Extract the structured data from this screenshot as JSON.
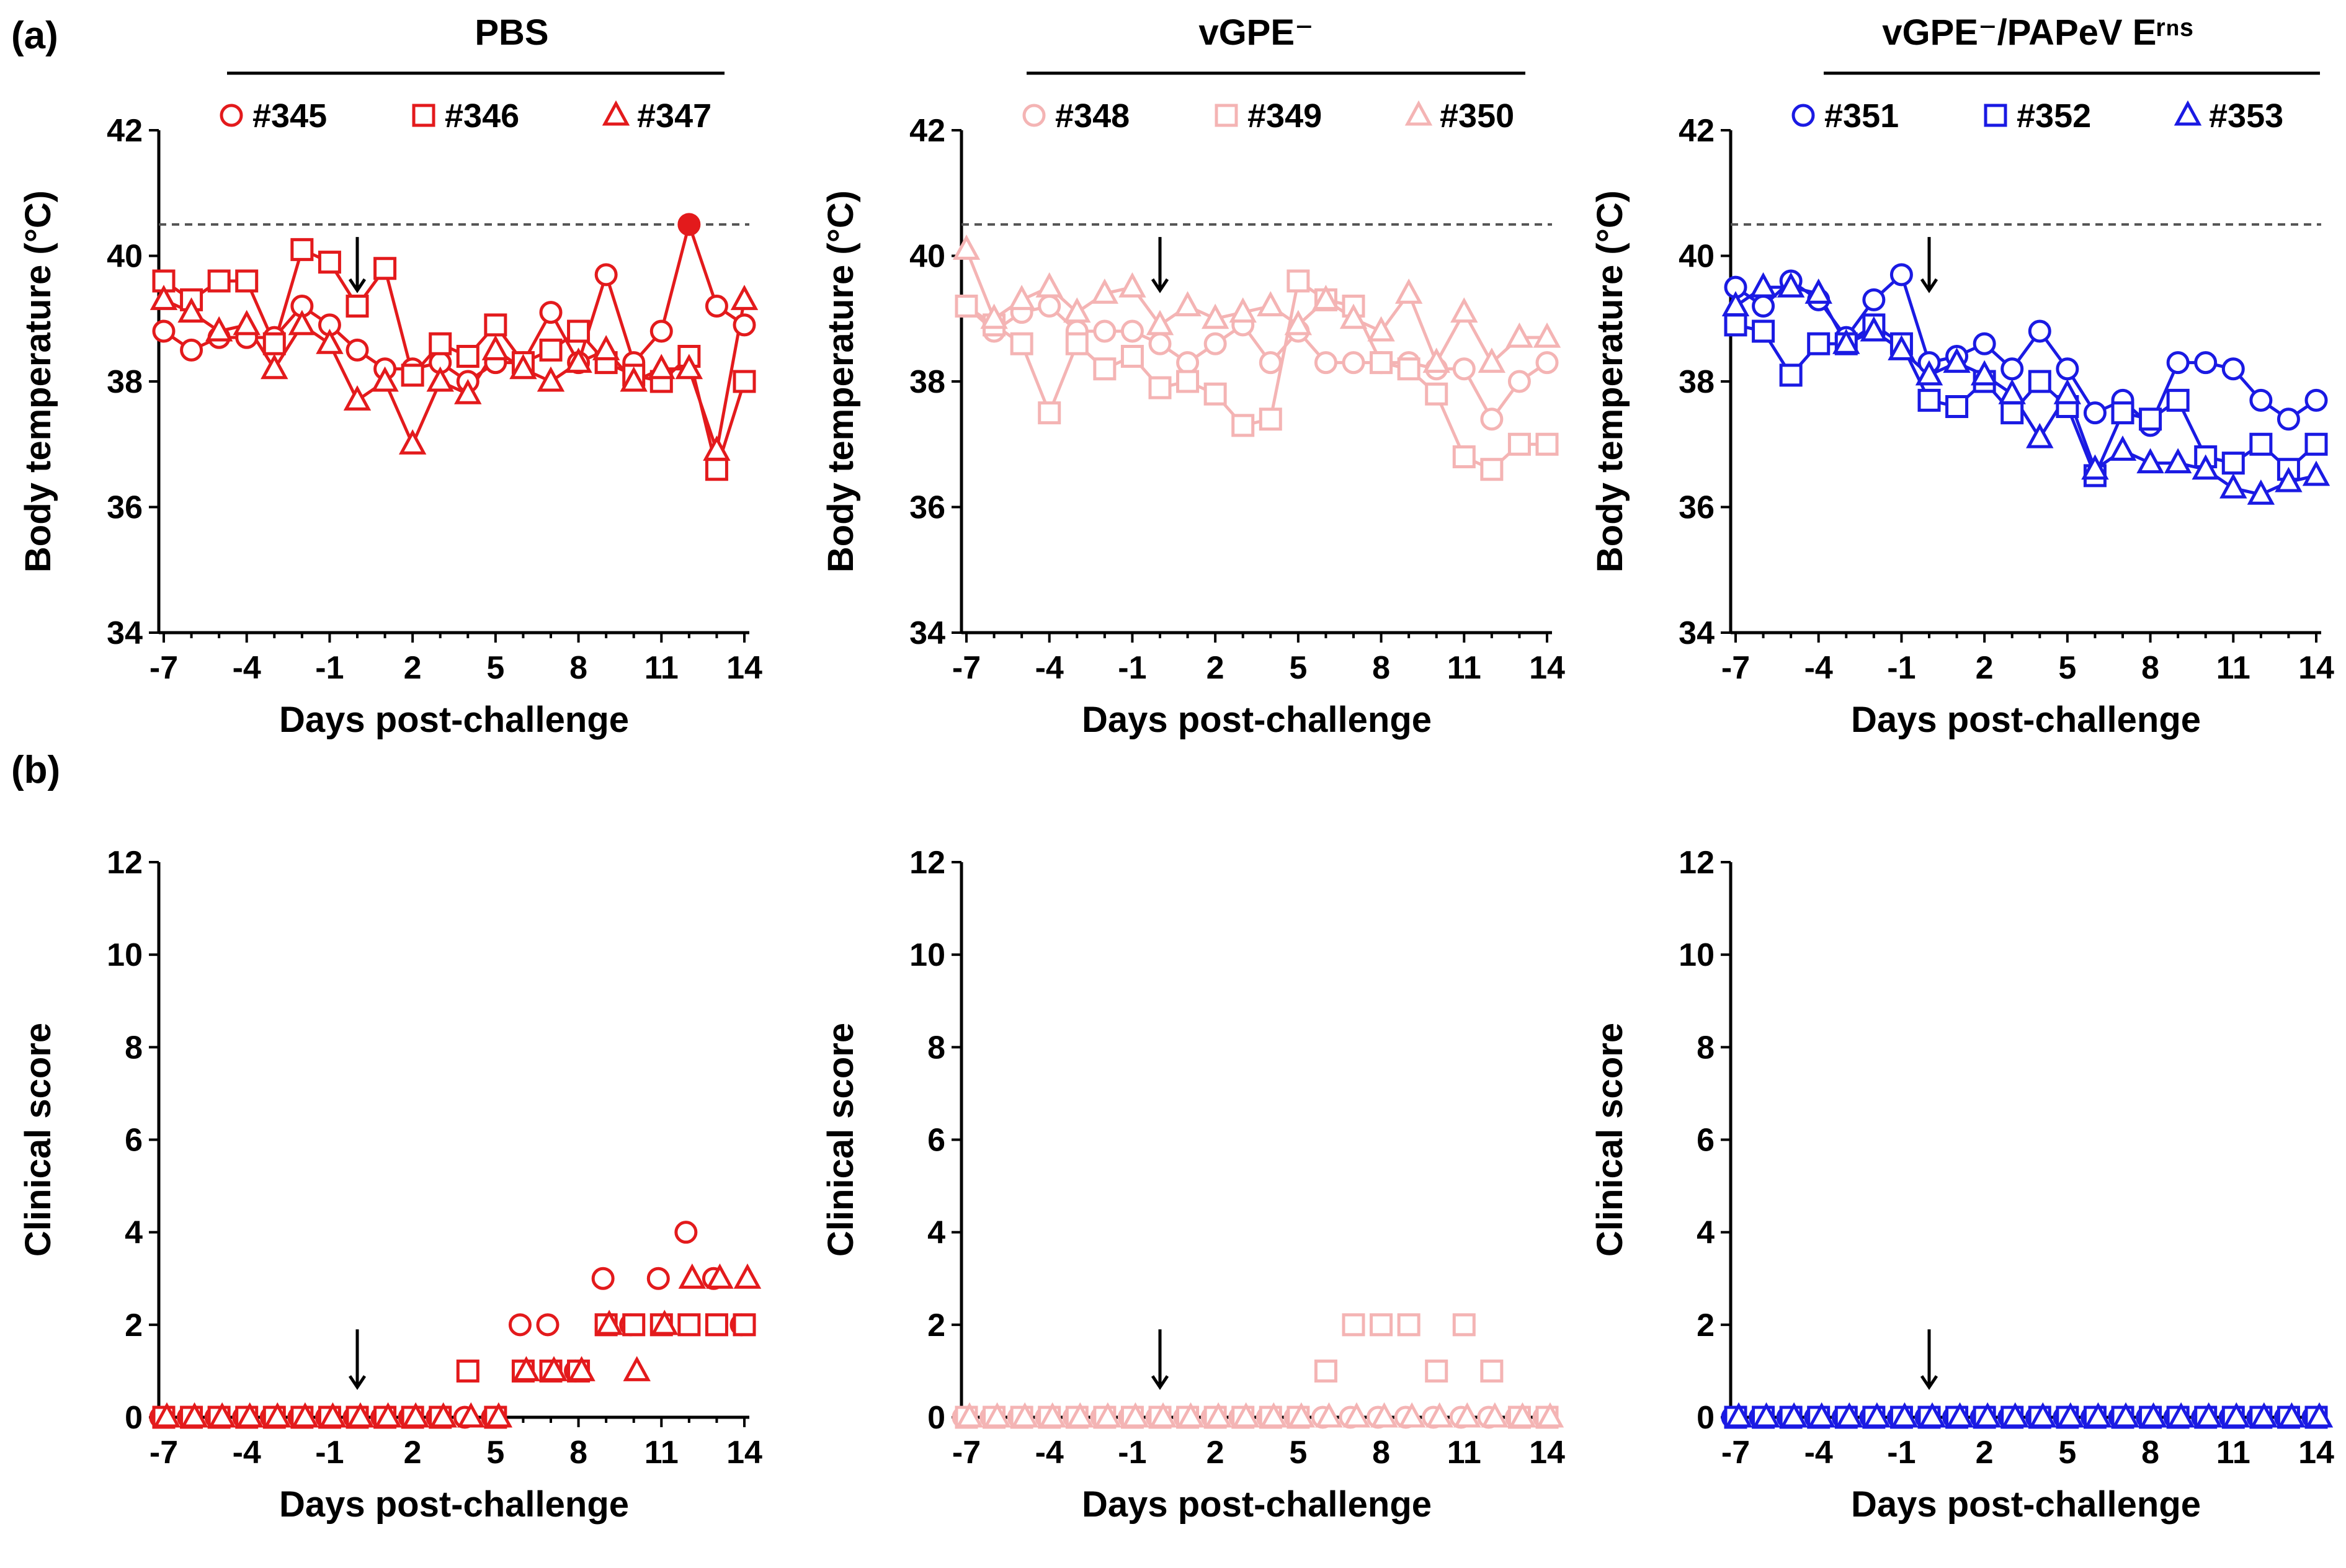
{
  "panel_labels": {
    "a": "(a)",
    "b": "(b)"
  },
  "groups": [
    {
      "title": "PBS",
      "color": "#e31a1c",
      "animals": [
        {
          "id": "#345",
          "marker": "circle"
        },
        {
          "id": "#346",
          "marker": "square"
        },
        {
          "id": "#347",
          "marker": "triangle"
        }
      ]
    },
    {
      "title": "vGPE⁻",
      "color": "#f4b4b4",
      "animals": [
        {
          "id": "#348",
          "marker": "circle"
        },
        {
          "id": "#349",
          "marker": "square"
        },
        {
          "id": "#350",
          "marker": "triangle"
        }
      ]
    },
    {
      "title": "vGPE⁻/PAPeV Eʳⁿˢ",
      "color": "#1a1ae3",
      "animals": [
        {
          "id": "#351",
          "marker": "circle"
        },
        {
          "id": "#352",
          "marker": "square"
        },
        {
          "id": "#353",
          "marker": "triangle"
        }
      ]
    }
  ],
  "challenge_arrow_day": 0,
  "chart_data": [
    {
      "type": "line",
      "row": "a",
      "group": 0,
      "title": "PBS",
      "xlabel": "Days post-challenge",
      "ylabel": "Body temperature (°C)",
      "xlim": [
        -7,
        14
      ],
      "ylim": [
        34,
        42
      ],
      "xticks": [
        -7,
        -4,
        -1,
        2,
        5,
        8,
        11,
        14
      ],
      "yticks": [
        34,
        36,
        38,
        40,
        42
      ],
      "fever_threshold": 40.5,
      "x": [
        -7,
        -6,
        -5,
        -4,
        -3,
        -2,
        -1,
        0,
        1,
        2,
        3,
        4,
        5,
        6,
        7,
        8,
        9,
        10,
        11,
        12,
        13,
        14
      ],
      "series": [
        {
          "name": "#345",
          "marker": "circle",
          "values": [
            38.8,
            38.5,
            38.7,
            38.7,
            38.7,
            39.2,
            38.9,
            38.5,
            38.2,
            38.2,
            38.3,
            38.0,
            38.3,
            38.3,
            39.1,
            38.3,
            39.7,
            38.3,
            38.8,
            40.5,
            39.2,
            38.9
          ],
          "filled_index": [
            19
          ]
        },
        {
          "name": "#346",
          "marker": "square",
          "values": [
            39.6,
            39.3,
            39.6,
            39.6,
            38.6,
            40.1,
            39.9,
            39.2,
            39.8,
            38.1,
            38.6,
            38.4,
            38.9,
            38.3,
            38.5,
            38.8,
            38.3,
            38.1,
            38.0,
            38.4,
            36.6,
            38.0
          ]
        },
        {
          "name": "#347",
          "marker": "triangle",
          "values": [
            39.3,
            39.1,
            38.8,
            38.9,
            38.2,
            38.9,
            38.6,
            37.7,
            38.0,
            37.0,
            38.0,
            37.8,
            38.5,
            38.2,
            38.0,
            38.3,
            38.5,
            38.0,
            38.2,
            38.2,
            36.9,
            39.3
          ]
        }
      ]
    },
    {
      "type": "line",
      "row": "a",
      "group": 1,
      "title": "vGPE⁻",
      "xlabel": "Days post-challenge",
      "ylabel": "Body temperature (°C)",
      "xlim": [
        -7,
        14
      ],
      "ylim": [
        34,
        42
      ],
      "xticks": [
        -7,
        -4,
        -1,
        2,
        5,
        8,
        11,
        14
      ],
      "yticks": [
        34,
        36,
        38,
        40,
        42
      ],
      "fever_threshold": 40.5,
      "x": [
        -7,
        -6,
        -5,
        -4,
        -3,
        -2,
        -1,
        0,
        1,
        2,
        3,
        4,
        5,
        6,
        7,
        8,
        9,
        10,
        11,
        12,
        13,
        14
      ],
      "series": [
        {
          "name": "#348",
          "marker": "circle",
          "values": [
            39.2,
            38.8,
            39.1,
            39.2,
            38.8,
            38.8,
            38.8,
            38.6,
            38.3,
            38.6,
            38.9,
            38.3,
            38.8,
            38.3,
            38.3,
            38.3,
            38.3,
            38.2,
            38.2,
            37.4,
            38.0,
            38.3
          ]
        },
        {
          "name": "#349",
          "marker": "square",
          "values": [
            39.2,
            38.9,
            38.6,
            37.5,
            38.6,
            38.2,
            38.4,
            37.9,
            38.0,
            37.8,
            37.3,
            37.4,
            39.6,
            39.3,
            39.2,
            38.3,
            38.2,
            37.8,
            36.8,
            36.6,
            37.0,
            37.0
          ]
        },
        {
          "name": "#350",
          "marker": "triangle",
          "values": [
            40.1,
            39.0,
            39.3,
            39.5,
            39.1,
            39.4,
            39.5,
            38.9,
            39.2,
            39.0,
            39.1,
            39.2,
            38.9,
            39.3,
            39.0,
            38.8,
            39.4,
            38.3,
            39.1,
            38.3,
            38.7,
            38.7
          ]
        }
      ]
    },
    {
      "type": "line",
      "row": "a",
      "group": 2,
      "title": "vGPE⁻/PAPeV Eʳⁿˢ",
      "xlabel": "Days post-challenge",
      "ylabel": "Body temperature (°C)",
      "xlim": [
        -7,
        14
      ],
      "ylim": [
        34,
        42
      ],
      "xticks": [
        -7,
        -4,
        -1,
        2,
        5,
        8,
        11,
        14
      ],
      "yticks": [
        34,
        36,
        38,
        40,
        42
      ],
      "fever_threshold": 40.5,
      "x": [
        -7,
        -6,
        -5,
        -4,
        -3,
        -2,
        -1,
        0,
        1,
        2,
        3,
        4,
        5,
        6,
        7,
        8,
        9,
        10,
        11,
        12,
        13,
        14
      ],
      "series": [
        {
          "name": "#351",
          "marker": "circle",
          "values": [
            39.5,
            39.2,
            39.6,
            39.3,
            38.7,
            39.3,
            39.7,
            38.3,
            38.4,
            38.6,
            38.2,
            38.8,
            38.2,
            37.5,
            37.7,
            37.3,
            38.3,
            38.3,
            38.2,
            37.7,
            37.4,
            37.7
          ]
        },
        {
          "name": "#352",
          "marker": "square",
          "values": [
            38.9,
            38.8,
            38.1,
            38.6,
            38.6,
            38.9,
            38.6,
            37.7,
            37.6,
            38.0,
            37.5,
            38.0,
            37.6,
            36.5,
            37.5,
            37.4,
            37.7,
            36.8,
            36.7,
            37.0,
            36.6,
            37.0
          ]
        },
        {
          "name": "#353",
          "marker": "triangle",
          "values": [
            39.2,
            39.5,
            39.5,
            39.4,
            38.6,
            38.8,
            38.5,
            38.1,
            38.3,
            38.1,
            37.8,
            37.1,
            37.8,
            36.6,
            36.9,
            36.7,
            36.7,
            36.6,
            36.3,
            36.2,
            36.4,
            36.5
          ]
        }
      ]
    },
    {
      "type": "scatter",
      "row": "b",
      "group": 0,
      "xlabel": "Days post-challenge",
      "ylabel": "Clinical score",
      "xlim": [
        -7,
        14
      ],
      "ylim": [
        0,
        12
      ],
      "xticks": [
        -7,
        -4,
        -1,
        2,
        5,
        8,
        11,
        14
      ],
      "yticks": [
        0,
        2,
        4,
        6,
        8,
        10,
        12
      ],
      "x": [
        -7,
        -6,
        -5,
        -4,
        -3,
        -2,
        -1,
        0,
        1,
        2,
        3,
        4,
        5,
        6,
        7,
        8,
        9,
        10,
        11,
        12,
        13,
        14
      ],
      "series": [
        {
          "name": "#345",
          "marker": "circle",
          "values": [
            0,
            0,
            0,
            0,
            0,
            0,
            0,
            0,
            0,
            0,
            0,
            0,
            0,
            2,
            2,
            1,
            3,
            2,
            3,
            4,
            3,
            2
          ]
        },
        {
          "name": "#346",
          "marker": "square",
          "values": [
            0,
            0,
            0,
            0,
            0,
            0,
            0,
            0,
            0,
            0,
            0,
            1,
            0,
            1,
            1,
            1,
            2,
            2,
            2,
            2,
            2,
            2
          ]
        },
        {
          "name": "#347",
          "marker": "triangle",
          "values": [
            0,
            0,
            0,
            0,
            0,
            0,
            0,
            0,
            0,
            0,
            0,
            0,
            0,
            1,
            1,
            1,
            2,
            1,
            2,
            3,
            3,
            3
          ]
        }
      ]
    },
    {
      "type": "scatter",
      "row": "b",
      "group": 1,
      "xlabel": "Days post-challenge",
      "ylabel": "Clinical score",
      "xlim": [
        -7,
        14
      ],
      "ylim": [
        0,
        12
      ],
      "xticks": [
        -7,
        -4,
        -1,
        2,
        5,
        8,
        11,
        14
      ],
      "yticks": [
        0,
        2,
        4,
        6,
        8,
        10,
        12
      ],
      "x": [
        -7,
        -6,
        -5,
        -4,
        -3,
        -2,
        -1,
        0,
        1,
        2,
        3,
        4,
        5,
        6,
        7,
        8,
        9,
        10,
        11,
        12,
        13,
        14
      ],
      "series": [
        {
          "name": "#348",
          "marker": "circle",
          "values": [
            0,
            0,
            0,
            0,
            0,
            0,
            0,
            0,
            0,
            0,
            0,
            0,
            0,
            0,
            0,
            0,
            0,
            0,
            0,
            0,
            0,
            0
          ]
        },
        {
          "name": "#349",
          "marker": "square",
          "values": [
            0,
            0,
            0,
            0,
            0,
            0,
            0,
            0,
            0,
            0,
            0,
            0,
            0,
            1,
            2,
            2,
            2,
            1,
            2,
            1,
            0,
            0
          ]
        },
        {
          "name": "#350",
          "marker": "triangle",
          "values": [
            0,
            0,
            0,
            0,
            0,
            0,
            0,
            0,
            0,
            0,
            0,
            0,
            0,
            0,
            0,
            0,
            0,
            0,
            0,
            0,
            0,
            0
          ]
        }
      ]
    },
    {
      "type": "scatter",
      "row": "b",
      "group": 2,
      "xlabel": "Days post-challenge",
      "ylabel": "Clinical score",
      "xlim": [
        -7,
        14
      ],
      "ylim": [
        0,
        12
      ],
      "xticks": [
        -7,
        -4,
        -1,
        2,
        5,
        8,
        11,
        14
      ],
      "yticks": [
        0,
        2,
        4,
        6,
        8,
        10,
        12
      ],
      "x": [
        -7,
        -6,
        -5,
        -4,
        -3,
        -2,
        -1,
        0,
        1,
        2,
        3,
        4,
        5,
        6,
        7,
        8,
        9,
        10,
        11,
        12,
        13,
        14
      ],
      "series": [
        {
          "name": "#351",
          "marker": "circle",
          "values": [
            0,
            0,
            0,
            0,
            0,
            0,
            0,
            0,
            0,
            0,
            0,
            0,
            0,
            0,
            0,
            0,
            0,
            0,
            0,
            0,
            0,
            0
          ]
        },
        {
          "name": "#352",
          "marker": "square",
          "values": [
            0,
            0,
            0,
            0,
            0,
            0,
            0,
            0,
            0,
            0,
            0,
            0,
            0,
            0,
            0,
            0,
            0,
            0,
            0,
            0,
            0,
            0
          ]
        },
        {
          "name": "#353",
          "marker": "triangle",
          "values": [
            0,
            0,
            0,
            0,
            0,
            0,
            0,
            0,
            0,
            0,
            0,
            0,
            0,
            0,
            0,
            0,
            0,
            0,
            0,
            0,
            0,
            0
          ]
        }
      ]
    }
  ]
}
